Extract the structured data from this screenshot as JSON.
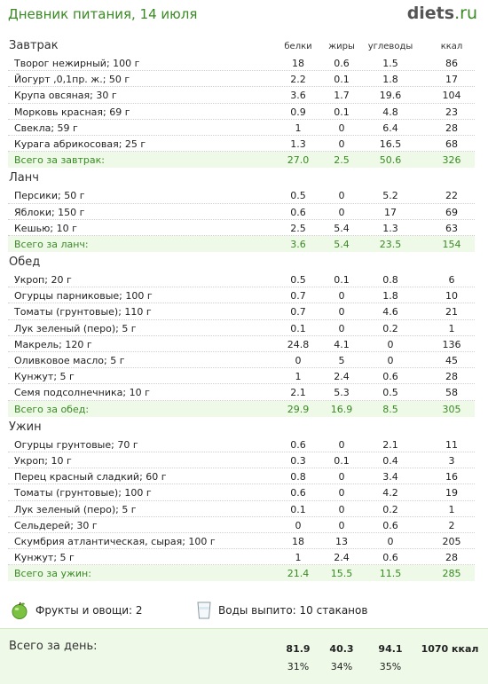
{
  "header": {
    "title": "Дневник питания, 14 июля",
    "logo_main": "diets",
    "logo_tld": ".ru"
  },
  "columns": {
    "protein": "белки",
    "fat": "жиры",
    "carbs": "углеводы",
    "kcal": "ккал"
  },
  "meals": [
    {
      "name": "Завтрак",
      "items": [
        {
          "name": "Творог нежирный; 100 г",
          "p": "18",
          "f": "0.6",
          "c": "1.5",
          "k": "86"
        },
        {
          "name": "Йогурт ,0,1пр. ж.; 50 г",
          "p": "2.2",
          "f": "0.1",
          "c": "1.8",
          "k": "17"
        },
        {
          "name": "Крупа овсяная; 30 г",
          "p": "3.6",
          "f": "1.7",
          "c": "19.6",
          "k": "104"
        },
        {
          "name": "Морковь красная; 69 г",
          "p": "0.9",
          "f": "0.1",
          "c": "4.8",
          "k": "23"
        },
        {
          "name": "Свекла; 59 г",
          "p": "1",
          "f": "0",
          "c": "6.4",
          "k": "28"
        },
        {
          "name": "Курага абрикосовая; 25 г",
          "p": "1.3",
          "f": "0",
          "c": "16.5",
          "k": "68"
        }
      ],
      "total": {
        "label": "Всего за завтрак:",
        "p": "27.0",
        "f": "2.5",
        "c": "50.6",
        "k": "326"
      }
    },
    {
      "name": "Ланч",
      "items": [
        {
          "name": "Персики; 50 г",
          "p": "0.5",
          "f": "0",
          "c": "5.2",
          "k": "22"
        },
        {
          "name": "Яблоки; 150 г",
          "p": "0.6",
          "f": "0",
          "c": "17",
          "k": "69"
        },
        {
          "name": "Кешью; 10 г",
          "p": "2.5",
          "f": "5.4",
          "c": "1.3",
          "k": "63"
        }
      ],
      "total": {
        "label": "Всего за ланч:",
        "p": "3.6",
        "f": "5.4",
        "c": "23.5",
        "k": "154"
      }
    },
    {
      "name": "Обед",
      "items": [
        {
          "name": "Укроп; 20 г",
          "p": "0.5",
          "f": "0.1",
          "c": "0.8",
          "k": "6"
        },
        {
          "name": "Огурцы парниковые; 100 г",
          "p": "0.7",
          "f": "0",
          "c": "1.8",
          "k": "10"
        },
        {
          "name": "Томаты (грунтовые); 110 г",
          "p": "0.7",
          "f": "0",
          "c": "4.6",
          "k": "21"
        },
        {
          "name": "Лук зеленый (перо); 5 г",
          "p": "0.1",
          "f": "0",
          "c": "0.2",
          "k": "1"
        },
        {
          "name": "Макрель; 120 г",
          "p": "24.8",
          "f": "4.1",
          "c": "0",
          "k": "136"
        },
        {
          "name": "Оливковое масло; 5 г",
          "p": "0",
          "f": "5",
          "c": "0",
          "k": "45"
        },
        {
          "name": "Кунжут; 5 г",
          "p": "1",
          "f": "2.4",
          "c": "0.6",
          "k": "28"
        },
        {
          "name": "Семя подсолнечника; 10 г",
          "p": "2.1",
          "f": "5.3",
          "c": "0.5",
          "k": "58"
        }
      ],
      "total": {
        "label": "Всего за обед:",
        "p": "29.9",
        "f": "16.9",
        "c": "8.5",
        "k": "305"
      }
    },
    {
      "name": "Ужин",
      "items": [
        {
          "name": "Огурцы грунтовые; 70 г",
          "p": "0.6",
          "f": "0",
          "c": "2.1",
          "k": "11"
        },
        {
          "name": "Укроп; 10 г",
          "p": "0.3",
          "f": "0.1",
          "c": "0.4",
          "k": "3"
        },
        {
          "name": "Перец красный сладкий; 60 г",
          "p": "0.8",
          "f": "0",
          "c": "3.4",
          "k": "16"
        },
        {
          "name": "Томаты (грунтовые); 100 г",
          "p": "0.6",
          "f": "0",
          "c": "4.2",
          "k": "19"
        },
        {
          "name": "Лук зеленый (перо); 5 г",
          "p": "0.1",
          "f": "0",
          "c": "0.2",
          "k": "1"
        },
        {
          "name": "Сельдерей; 30 г",
          "p": "0",
          "f": "0",
          "c": "0.6",
          "k": "2"
        },
        {
          "name": "Скумбрия атлантическая, сырая; 100 г",
          "p": "18",
          "f": "13",
          "c": "0",
          "k": "205"
        },
        {
          "name": "Кунжут; 5 г",
          "p": "1",
          "f": "2.4",
          "c": "0.6",
          "k": "28"
        }
      ],
      "total": {
        "label": "Всего за ужин:",
        "p": "21.4",
        "f": "15.5",
        "c": "11.5",
        "k": "285"
      }
    }
  ],
  "footer": {
    "fruits": "Фрукты и овощи: 2",
    "water": "Воды выпито: 10 стаканов"
  },
  "day_total": {
    "label": "Всего за день:",
    "p": "81.9",
    "f": "40.3",
    "c": "94.1",
    "k": "1070 ккал",
    "p_pct": "31%",
    "f_pct": "34%",
    "c_pct": "35%"
  }
}
